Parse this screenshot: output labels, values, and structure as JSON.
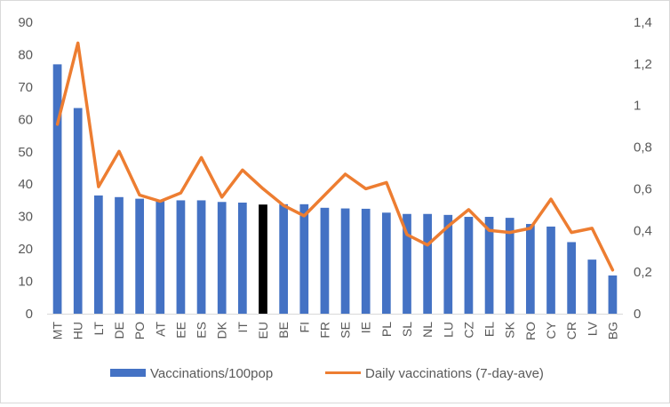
{
  "chart_data": {
    "type": "bar+line",
    "categories": [
      "MT",
      "HU",
      "LT",
      "DE",
      "PO",
      "AT",
      "EE",
      "ES",
      "DK",
      "IT",
      "EU",
      "BE",
      "FI",
      "FR",
      "SE",
      "IE",
      "PL",
      "SL",
      "NL",
      "LU",
      "CZ",
      "EL",
      "SK",
      "RO",
      "CY",
      "CR",
      "LV",
      "BG"
    ],
    "highlight_category": "EU",
    "series": [
      {
        "name": "Vaccinations/100pop",
        "type": "bar",
        "axis": "left",
        "color": "#4472C4",
        "highlight_color": "#000000",
        "values": [
          77,
          63.5,
          36.5,
          36,
          35.5,
          35,
          35,
          35,
          34.5,
          34.3,
          33.7,
          33.8,
          33.8,
          32.7,
          32.5,
          32.4,
          31.2,
          30.8,
          30.8,
          30.5,
          29.9,
          29.9,
          29.6,
          27.7,
          26.9,
          22.1,
          16.7,
          11.8
        ]
      },
      {
        "name": "Daily vaccinations (7-day-ave)",
        "type": "line",
        "axis": "right",
        "color": "#ED7D31",
        "values": [
          0.91,
          1.3,
          0.61,
          0.78,
          0.57,
          0.54,
          0.58,
          0.75,
          0.56,
          0.69,
          0.6,
          0.52,
          0.47,
          0.57,
          0.67,
          0.6,
          0.63,
          0.38,
          0.33,
          0.42,
          0.5,
          0.4,
          0.39,
          0.41,
          0.55,
          0.39,
          0.41,
          0.21
        ]
      }
    ],
    "y_left": {
      "min": 0,
      "max": 90,
      "ticks": [
        "0",
        "10",
        "20",
        "30",
        "40",
        "50",
        "60",
        "70",
        "80",
        "90"
      ]
    },
    "y_right": {
      "min": 0,
      "max": 1.4,
      "ticks": [
        "0",
        "0,2",
        "0,4",
        "0,6",
        "0,8",
        "1",
        "1,2",
        "1,4"
      ]
    },
    "grid": false,
    "legend_position": "bottom"
  }
}
